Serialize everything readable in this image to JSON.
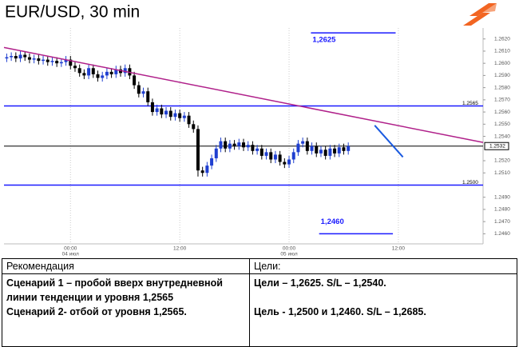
{
  "chart_data": {
    "type": "candlestick",
    "title": "EUR/USD, 30 min",
    "xlim": [
      -7.3,
      45.3
    ],
    "ylim": [
      1.2455,
      1.2629
    ],
    "xticks": [
      {
        "value": 0,
        "label": "00:00"
      },
      {
        "value": 12,
        "label": "12:00"
      },
      {
        "value": 24,
        "label": "00:00"
      },
      {
        "value": 36,
        "label": "12:00"
      }
    ],
    "xtick_dates": [
      "04 июл",
      null,
      "05 июл",
      null
    ],
    "yticks": [
      {
        "value": 1.262,
        "label": "1.2620"
      },
      {
        "value": 1.261,
        "label": "1.2610"
      },
      {
        "value": 1.26,
        "label": "1.2600"
      },
      {
        "value": 1.259,
        "label": "1.2590"
      },
      {
        "value": 1.258,
        "label": "1.2580"
      },
      {
        "value": 1.257,
        "label": "1.2570"
      },
      {
        "value": 1.256,
        "label": "1.2560"
      },
      {
        "value": 1.255,
        "label": "1.2550"
      },
      {
        "value": 1.254,
        "label": "1.2540"
      },
      {
        "value": 1.252,
        "label": "1.2520"
      },
      {
        "value": 1.251,
        "label": "1.2510"
      },
      {
        "value": 1.249,
        "label": "1.2490"
      },
      {
        "value": 1.248,
        "label": "1.2480"
      },
      {
        "value": 1.247,
        "label": "1.2470"
      },
      {
        "value": 1.246,
        "label": "1.2460"
      }
    ],
    "grid": true,
    "up_color": "#1f3fd0",
    "down_color": "#000000",
    "x": [
      -7,
      -6.5,
      -6,
      -5.5,
      -5,
      -4.5,
      -4,
      -3.5,
      -3,
      -2.5,
      -2,
      -1.5,
      -1,
      -0.5,
      0,
      0.5,
      1,
      1.5,
      2,
      2.5,
      3,
      3.5,
      4,
      4.5,
      5,
      5.5,
      6,
      6.5,
      7,
      7.5,
      8,
      8.5,
      9,
      9.5,
      10,
      10.5,
      11,
      11.5,
      12,
      12.5,
      13,
      13.5,
      14,
      14.5,
      15,
      15.5,
      16,
      16.5,
      17,
      17.5,
      18,
      18.5,
      19,
      19.5,
      20,
      20.5,
      21,
      21.5,
      22,
      22.5,
      23,
      23.5,
      24,
      24.5,
      25,
      25.5,
      26,
      26.5,
      27,
      27.5,
      28,
      28.5,
      29,
      29.5,
      30,
      30.5
    ],
    "open": [
      1.2604,
      1.2605,
      1.2606,
      1.2604,
      1.2607,
      1.2605,
      1.2603,
      1.2604,
      1.2602,
      1.2603,
      1.2601,
      1.2602,
      1.26,
      1.2601,
      1.2603,
      1.2598,
      1.2596,
      1.2592,
      1.259,
      1.2596,
      1.2591,
      1.2588,
      1.259,
      1.2593,
      1.2591,
      1.2595,
      1.2592,
      1.2596,
      1.259,
      1.2582,
      1.2575,
      1.2577,
      1.2568,
      1.256,
      1.2563,
      1.2558,
      1.2561,
      1.2556,
      1.2559,
      1.2555,
      1.2557,
      1.255,
      1.2546,
      1.2512,
      1.251,
      1.2516,
      1.2522,
      1.253,
      1.2536,
      1.253,
      1.2534,
      1.2532,
      1.2535,
      1.2531,
      1.2533,
      1.2528,
      1.253,
      1.2524,
      1.2527,
      1.2521,
      1.2525,
      1.2519,
      1.2517,
      1.2521,
      1.2527,
      1.2534,
      1.2536,
      1.2528,
      1.2532,
      1.2526,
      1.2529,
      1.2524,
      1.253,
      1.2526,
      1.2531,
      1.2528
    ],
    "high": [
      1.2608,
      1.2609,
      1.2609,
      1.261,
      1.261,
      1.2608,
      1.2607,
      1.2607,
      1.2606,
      1.2606,
      1.2605,
      1.2605,
      1.2604,
      1.2606,
      1.2606,
      1.2601,
      1.2599,
      1.2595,
      1.2599,
      1.2599,
      1.2594,
      1.2593,
      1.2596,
      1.2596,
      1.2598,
      1.2598,
      1.2599,
      1.2599,
      1.2593,
      1.2585,
      1.258,
      1.258,
      1.2571,
      1.2566,
      1.2566,
      1.2564,
      1.2564,
      1.2562,
      1.2562,
      1.256,
      1.256,
      1.2553,
      1.2549,
      1.2515,
      1.2519,
      1.2525,
      1.2533,
      1.2539,
      1.2539,
      1.2537,
      1.2537,
      1.2538,
      1.2538,
      1.2536,
      1.2536,
      1.2533,
      1.2533,
      1.253,
      1.253,
      1.2528,
      1.2528,
      1.2522,
      1.2524,
      1.253,
      1.2537,
      1.2539,
      1.2539,
      1.2535,
      1.2535,
      1.2532,
      1.2532,
      1.2533,
      1.2533,
      1.2534,
      1.2534,
      1.2535
    ],
    "low": [
      1.2601,
      1.2602,
      1.2601,
      1.2601,
      1.2602,
      1.26,
      1.26,
      1.2599,
      1.2599,
      1.2598,
      1.2598,
      1.2597,
      1.2597,
      1.2598,
      1.2595,
      1.2593,
      1.2589,
      1.2587,
      1.2587,
      1.2588,
      1.2585,
      1.2585,
      1.2587,
      1.2588,
      1.2588,
      1.2589,
      1.2589,
      1.2587,
      1.2579,
      1.2572,
      1.2572,
      1.2565,
      1.2557,
      1.2557,
      1.2555,
      1.2555,
      1.2553,
      1.2553,
      1.2552,
      1.2552,
      1.2547,
      1.2543,
      1.2507,
      1.2507,
      1.2507,
      1.2513,
      1.2519,
      1.2527,
      1.2527,
      1.2527,
      1.2529,
      1.2529,
      1.2528,
      1.2528,
      1.2525,
      1.2525,
      1.2521,
      1.2521,
      1.2518,
      1.2518,
      1.2516,
      1.2514,
      1.2514,
      1.2518,
      1.2524,
      1.2531,
      1.2525,
      1.2525,
      1.2523,
      1.2523,
      1.2521,
      1.2521,
      1.2523,
      1.2523,
      1.2525,
      1.2525
    ],
    "close": [
      1.2605,
      1.2606,
      1.2604,
      1.2607,
      1.2605,
      1.2603,
      1.2604,
      1.2602,
      1.2603,
      1.2601,
      1.2602,
      1.26,
      1.2601,
      1.2603,
      1.2598,
      1.2596,
      1.2592,
      1.259,
      1.2596,
      1.2591,
      1.2588,
      1.259,
      1.2593,
      1.2591,
      1.2595,
      1.2592,
      1.2596,
      1.259,
      1.2582,
      1.2575,
      1.2577,
      1.2568,
      1.256,
      1.2563,
      1.2558,
      1.2561,
      1.2556,
      1.2559,
      1.2555,
      1.2557,
      1.255,
      1.2546,
      1.2512,
      1.251,
      1.2516,
      1.2522,
      1.253,
      1.2536,
      1.253,
      1.2534,
      1.2532,
      1.2535,
      1.2531,
      1.2533,
      1.2528,
      1.253,
      1.2524,
      1.2527,
      1.2521,
      1.2525,
      1.2519,
      1.2517,
      1.2521,
      1.2527,
      1.2534,
      1.2536,
      1.2528,
      1.2532,
      1.2526,
      1.2529,
      1.2524,
      1.253,
      1.2526,
      1.2531,
      1.2528,
      1.2532
    ],
    "trendline": {
      "x": [
        -7.3,
        45.3
      ],
      "y": [
        1.2613,
        1.2535
      ],
      "color": "#b0208a"
    },
    "levels": [
      {
        "y": 1.2565,
        "color": "#1a1aff"
      },
      {
        "y": {
          "value": 1.25,
          "label": "1.2500"
        },
        "color": "#1a1aff"
      },
      {
        "y": 1.2532,
        "color": "#000000",
        "boxed": true
      }
    ],
    "targets": [
      {
        "y": 1.2625,
        "x": [
          26.4,
          35.7
        ],
        "label": "1,2625"
      },
      {
        "y": 1.246,
        "x": [
          27.3,
          35.4
        ],
        "label": "1,2460"
      }
    ],
    "forecast_line": {
      "x": [
        33.4,
        36.5
      ],
      "y": [
        1.2549,
        1.2523
      ],
      "color": "#1a5ae0"
    }
  },
  "table": {
    "header": [
      "Рекомендация",
      "Цели:"
    ],
    "left": [
      "Сценарий  1 – пробой вверх внутредневной линии тенденции и уровня 1,2565",
      "Сценарий  2- отбой от уровня 1,2565."
    ],
    "right": [
      "Цели – 1,2625. S/L – 1,2540.",
      "Цель  - 1,2500 и 1,2460. S/L – 1,2685."
    ]
  }
}
